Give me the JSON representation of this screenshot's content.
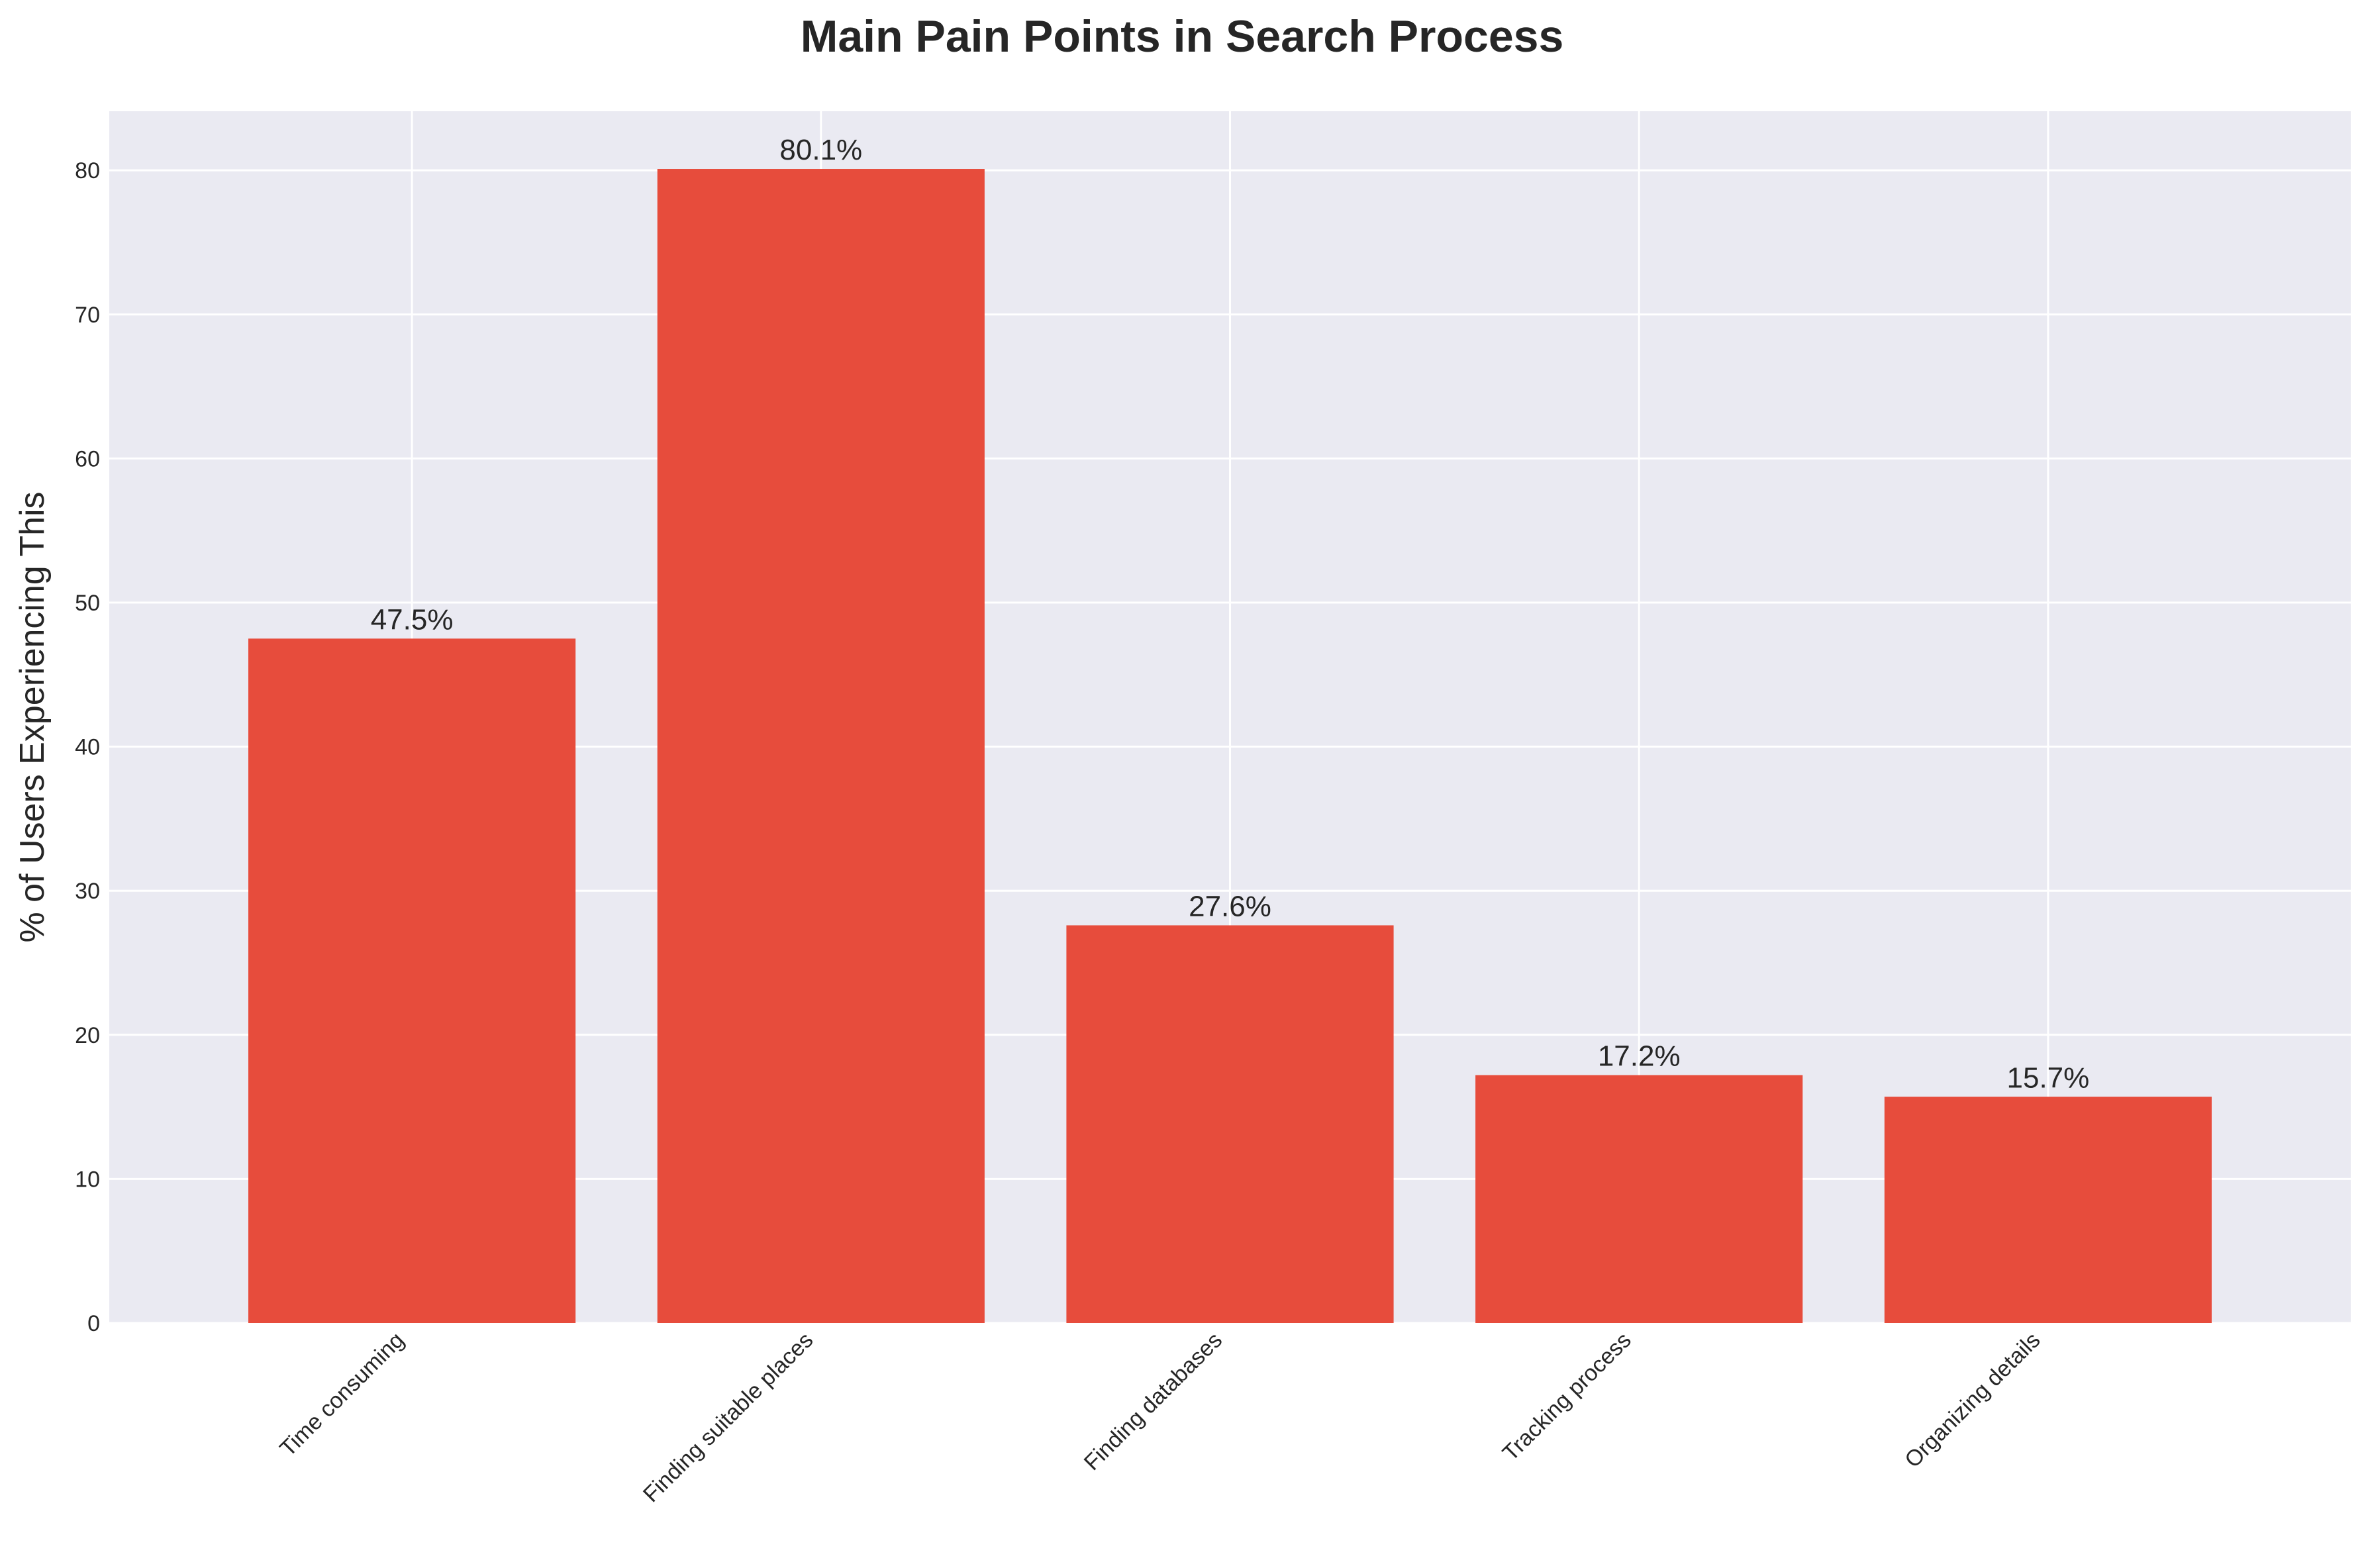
{
  "chart_data": {
    "type": "bar",
    "title": "Main Pain Points in Search Process",
    "xlabel": "",
    "ylabel": "% of Users Experiencing This",
    "categories": [
      "Time consuming",
      "Finding suitable places",
      "Finding databases",
      "Tracking process",
      "Organizing details"
    ],
    "values": [
      47.5,
      80.1,
      27.6,
      17.2,
      15.7
    ],
    "data_labels": [
      "47.5%",
      "80.1%",
      "27.6%",
      "17.2%",
      "15.7%"
    ],
    "ylim": [
      0,
      84.1
    ],
    "yticks": [
      0,
      10,
      20,
      30,
      40,
      50,
      60,
      70,
      80
    ],
    "grid": true,
    "legend": "none",
    "colors": {
      "bar": "#e74c3c",
      "plot_background": "#eaeaf2",
      "grid": "#ffffff",
      "text": "#262626"
    }
  }
}
